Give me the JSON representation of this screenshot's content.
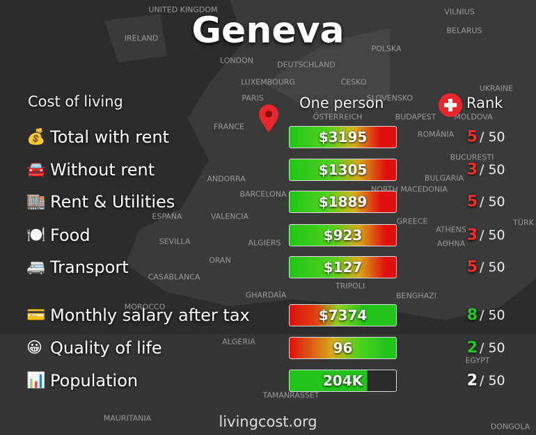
{
  "title": "Geneva",
  "header": {
    "label": "Cost of living",
    "column": "One person",
    "rank": "Rank"
  },
  "rows": [
    {
      "icon": "💰",
      "label": "Total with rent",
      "value": "$3195",
      "rank": "5",
      "out_of": "/ 50"
    },
    {
      "icon": "🚘",
      "label": "Without rent",
      "value": "$1305",
      "rank": "3",
      "out_of": "/ 50"
    },
    {
      "icon": "🏬",
      "label": "Rent & Utilities",
      "value": "$1889",
      "rank": "5",
      "out_of": "/ 50"
    },
    {
      "icon": "🍽️",
      "label": "Food",
      "value": "$923",
      "rank": "3",
      "out_of": "/ 50"
    },
    {
      "icon": "🚐",
      "label": "Transport",
      "value": "$127",
      "rank": "5",
      "out_of": "/ 50"
    },
    {
      "icon": "💳",
      "label": "Monthly salary after tax",
      "value": "$7374",
      "rank": "8",
      "out_of": "/ 50"
    },
    {
      "icon": "😀",
      "label": "Quality of life",
      "value": "96",
      "rank": "2",
      "out_of": "/ 50"
    },
    {
      "icon": "📊",
      "label": "Population",
      "value": "204K",
      "rank": "2",
      "out_of": "/ 50"
    }
  ],
  "map_labels": [
    "UNITED KINGDOM",
    "IRELAND",
    "LONDON",
    "DEUTSCHLAND",
    "LUXEMBOURG",
    "ČESKO",
    "POLSKA",
    "BELARUS",
    "VILNIUS",
    "UKRAINE",
    "PARIS",
    "SLOVENSKO",
    "BUDAPEST",
    "MOLDOVA",
    "FRANCE",
    "ÖSTERREICH",
    "ROMÂNIA",
    "BUCUREȘTI",
    "ANDORRA",
    "BULGARIA",
    "NORTH MACEDONIA",
    "BARCELONA",
    "ESPAÑA",
    "VALENCIA",
    "GREECE",
    "TÜRK",
    "ATHENS",
    "ΑΘΗΝΑ",
    "SEVILLA",
    "ALGIERS",
    "ORAN",
    "CASABLANCA",
    "TRIPOLI",
    "BENGHAZI",
    "GHARDAÏA",
    "MOROCCO",
    "ALGERIA",
    "EGYPT",
    "TAMANRASSET",
    "MAURITANIA",
    "DONGOLA"
  ],
  "footer": "livingcost.org"
}
